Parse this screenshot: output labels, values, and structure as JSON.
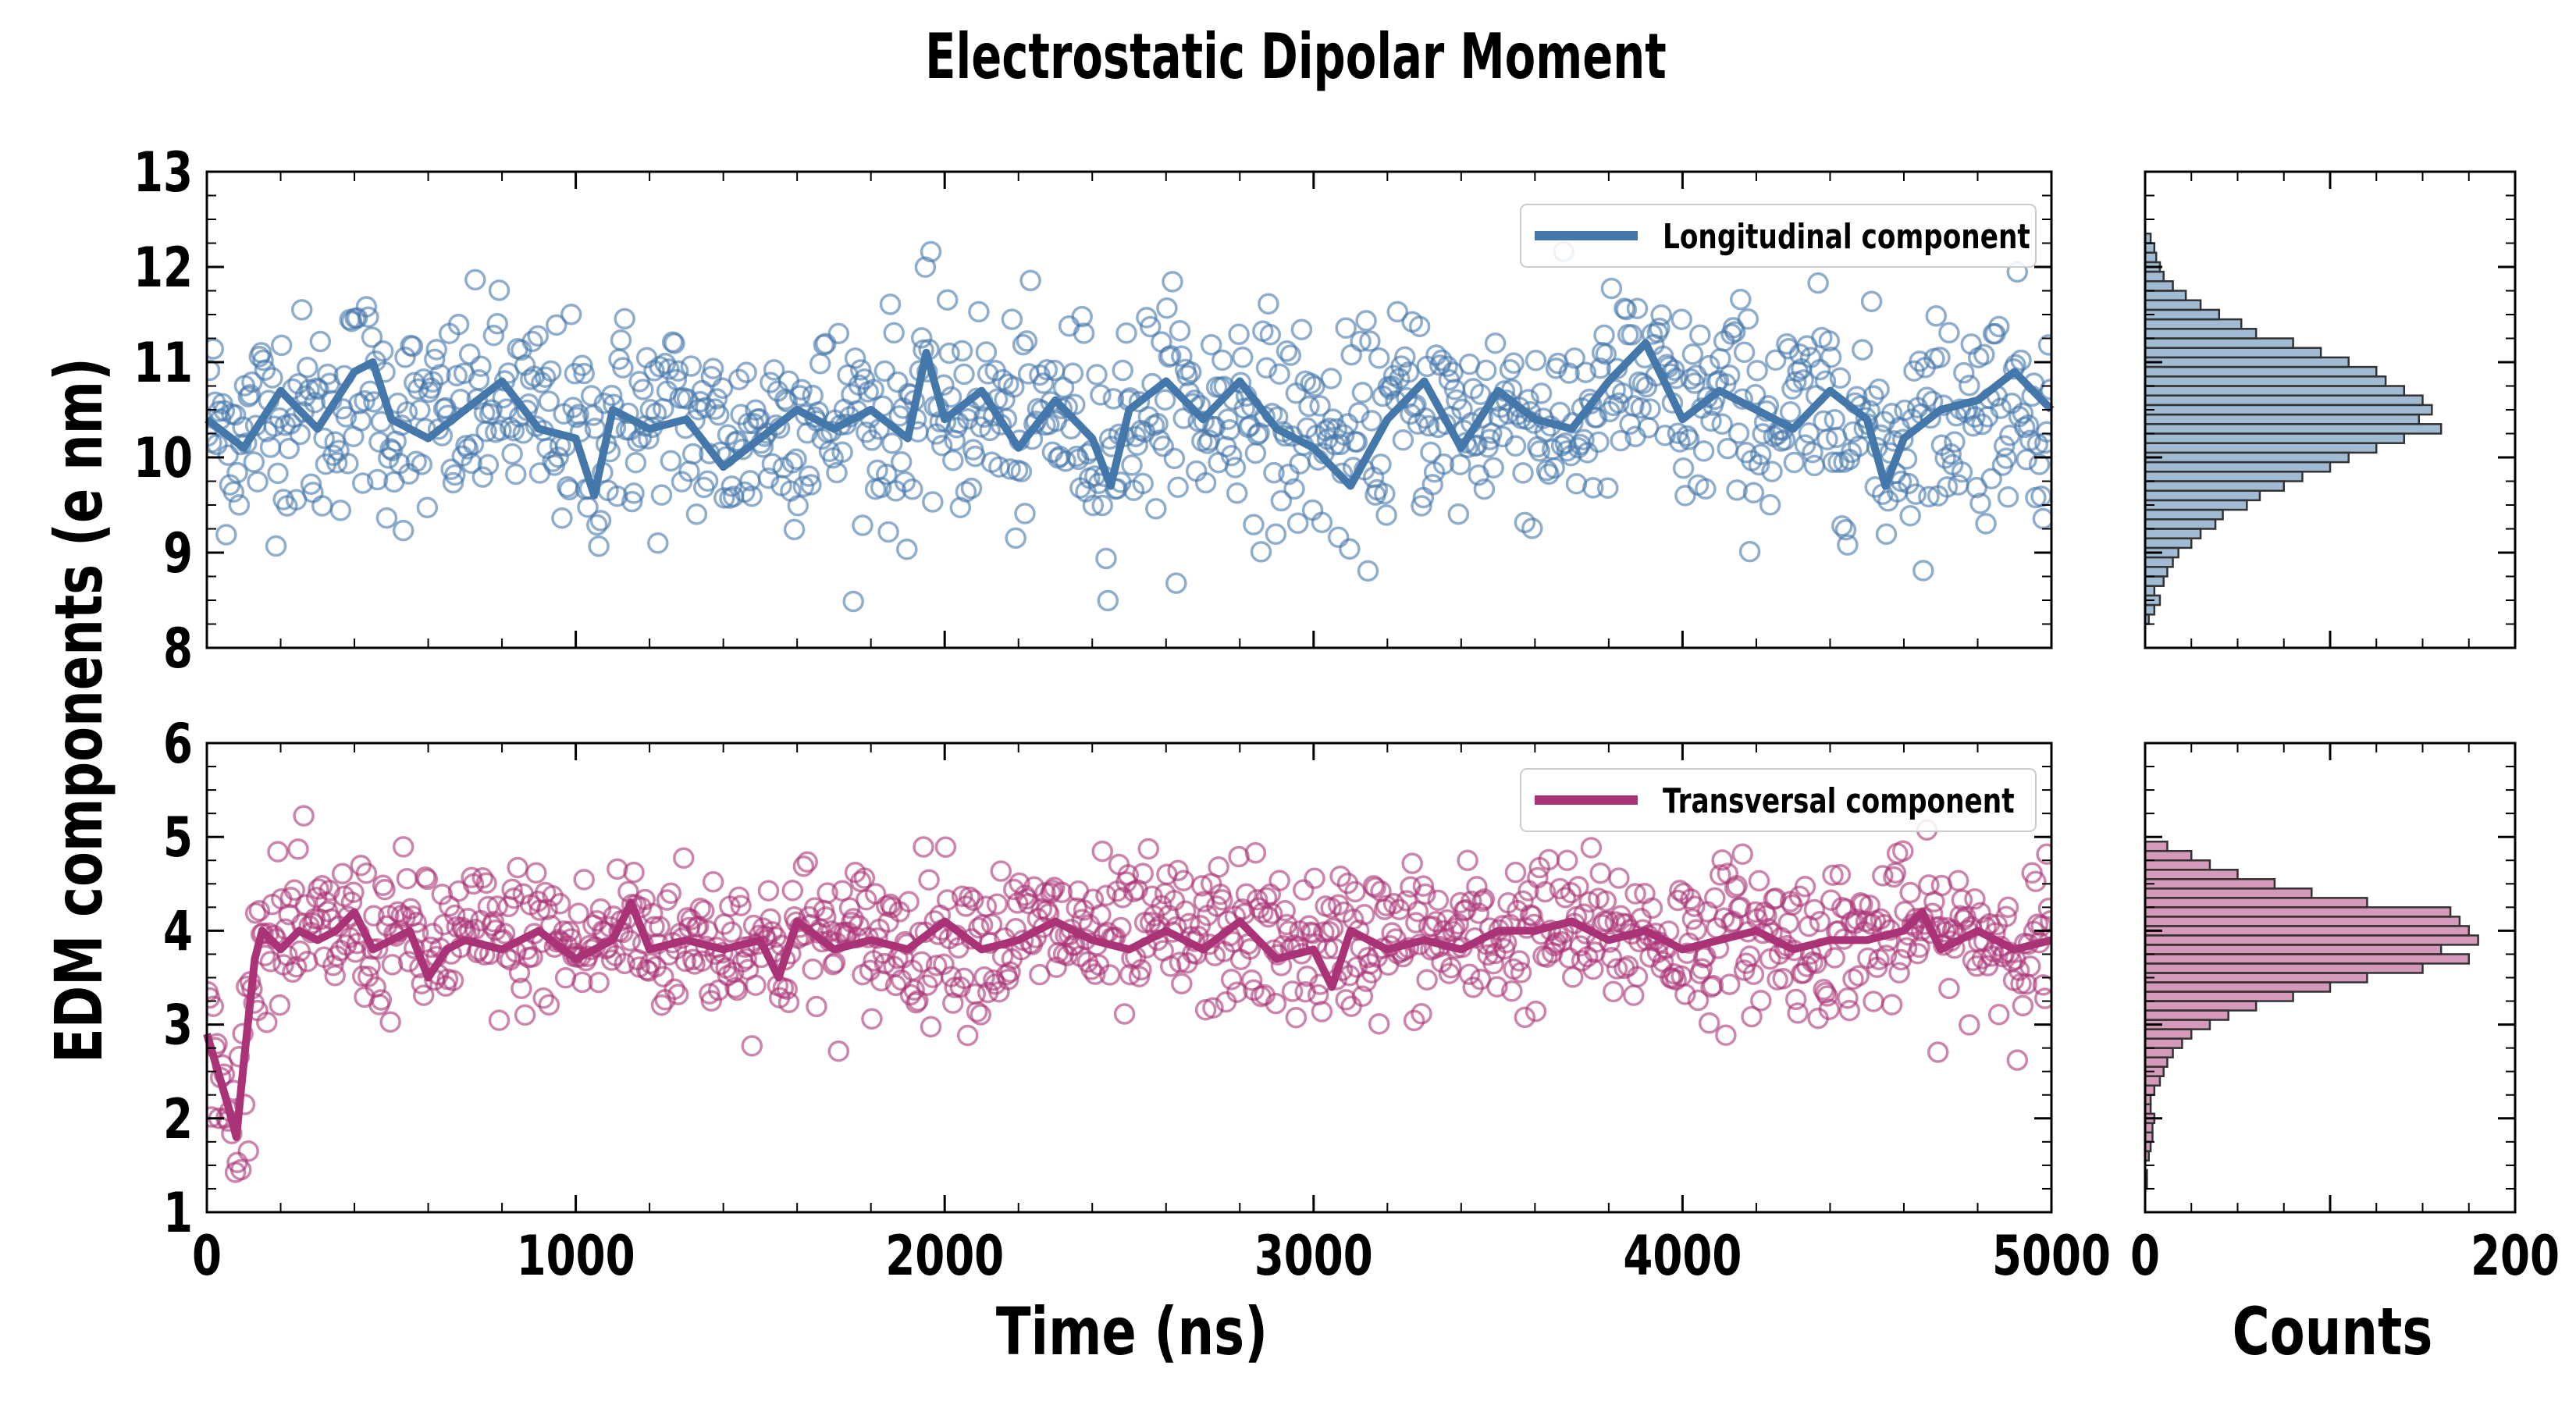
{
  "title": "Electrostatic Dipolar Moment",
  "xlabel": "Time (ns)",
  "ylabel": "EDM components (e nm)",
  "hist_xlabel": "Counts",
  "colors": {
    "longitudinal": "#4477aa",
    "transversal": "#aa3377",
    "frame": "#000000"
  },
  "chart_data": [
    {
      "type": "scatter",
      "panel": "top-main",
      "xlim": [
        0,
        5000
      ],
      "ylim": [
        8,
        13
      ],
      "xticks": [
        "0",
        "1000",
        "2000",
        "3000",
        "4000",
        "5000"
      ],
      "yticks": [
        "8",
        "9",
        "10",
        "11",
        "12",
        "13"
      ],
      "xlabel": "Time (ns)",
      "legend_position": "top-right",
      "series": [
        {
          "name": "Longitudinal component",
          "style": "line",
          "x": [
            0,
            100,
            200,
            300,
            400,
            450,
            500,
            600,
            700,
            800,
            900,
            1000,
            1050,
            1100,
            1200,
            1300,
            1400,
            1500,
            1600,
            1700,
            1800,
            1900,
            1950,
            2000,
            2100,
            2200,
            2300,
            2400,
            2450,
            2500,
            2600,
            2700,
            2800,
            2900,
            3000,
            3050,
            3100,
            3200,
            3300,
            3400,
            3500,
            3600,
            3700,
            3800,
            3900,
            4000,
            4100,
            4200,
            4300,
            4400,
            4500,
            4550,
            4600,
            4700,
            4800,
            4900,
            5000
          ],
          "y": [
            10.4,
            10.1,
            10.7,
            10.3,
            10.9,
            11.0,
            10.4,
            10.2,
            10.5,
            10.8,
            10.3,
            10.2,
            9.6,
            10.5,
            10.3,
            10.4,
            9.9,
            10.2,
            10.5,
            10.3,
            10.5,
            10.2,
            11.1,
            10.4,
            10.7,
            10.1,
            10.6,
            10.2,
            9.7,
            10.5,
            10.8,
            10.4,
            10.8,
            10.3,
            10.1,
            9.9,
            9.7,
            10.4,
            10.8,
            10.1,
            10.7,
            10.4,
            10.3,
            10.8,
            11.2,
            10.4,
            10.7,
            10.5,
            10.3,
            10.7,
            10.4,
            9.7,
            10.2,
            10.5,
            10.6,
            10.9,
            10.5
          ]
        },
        {
          "name": "",
          "style": "open-circles",
          "n_points": 1000,
          "mean": 10.4,
          "sd": 0.55
        }
      ]
    },
    {
      "type": "bar",
      "orientation": "horizontal",
      "panel": "top-histogram",
      "xlim": [
        0,
        200
      ],
      "ylim": [
        8,
        13
      ],
      "bin_centers": [
        8.3,
        8.4,
        8.5,
        8.6,
        8.7,
        8.8,
        8.9,
        9.0,
        9.1,
        9.2,
        9.3,
        9.4,
        9.5,
        9.6,
        9.7,
        9.8,
        9.9,
        10.0,
        10.1,
        10.2,
        10.3,
        10.4,
        10.5,
        10.6,
        10.7,
        10.8,
        10.9,
        11.0,
        11.1,
        11.2,
        11.3,
        11.4,
        11.5,
        11.6,
        11.7,
        11.8,
        11.9,
        12.0,
        12.1,
        12.2,
        12.3
      ],
      "values": [
        2,
        5,
        8,
        5,
        10,
        12,
        15,
        18,
        25,
        30,
        38,
        42,
        55,
        62,
        75,
        85,
        100,
        110,
        125,
        140,
        160,
        148,
        155,
        150,
        140,
        130,
        125,
        110,
        95,
        80,
        60,
        52,
        40,
        30,
        22,
        15,
        10,
        8,
        6,
        5,
        3
      ]
    },
    {
      "type": "scatter",
      "panel": "bottom-main",
      "xlim": [
        0,
        5000
      ],
      "ylim": [
        1,
        6
      ],
      "xticks": [
        "0",
        "1000",
        "2000",
        "3000",
        "4000",
        "5000"
      ],
      "yticks": [
        "1",
        "2",
        "3",
        "4",
        "5",
        "6"
      ],
      "xlabel": "Time (ns)",
      "legend_position": "top-right",
      "series": [
        {
          "name": "Transversal component",
          "style": "line",
          "x": [
            0,
            30,
            60,
            80,
            100,
            130,
            150,
            200,
            250,
            300,
            350,
            400,
            450,
            500,
            550,
            600,
            650,
            700,
            800,
            900,
            1000,
            1100,
            1150,
            1200,
            1300,
            1400,
            1500,
            1550,
            1600,
            1700,
            1800,
            1900,
            2000,
            2100,
            2200,
            2300,
            2400,
            2500,
            2600,
            2700,
            2800,
            2900,
            3000,
            3050,
            3100,
            3200,
            3300,
            3400,
            3500,
            3600,
            3700,
            3800,
            3900,
            4000,
            4100,
            4200,
            4300,
            4400,
            4500,
            4600,
            4650,
            4700,
            4800,
            4900,
            5000
          ],
          "y": [
            2.9,
            2.5,
            2.1,
            1.8,
            2.6,
            3.7,
            4.0,
            3.8,
            4.0,
            3.9,
            4.0,
            4.2,
            3.8,
            3.9,
            4.0,
            3.5,
            3.8,
            3.9,
            3.8,
            4.0,
            3.7,
            3.9,
            4.3,
            3.8,
            3.9,
            3.8,
            3.9,
            3.5,
            4.1,
            3.8,
            3.9,
            3.8,
            4.1,
            3.8,
            3.9,
            4.1,
            3.9,
            3.8,
            4.0,
            3.8,
            4.1,
            3.7,
            3.8,
            3.4,
            4.0,
            3.8,
            3.9,
            3.8,
            4.0,
            4.0,
            4.1,
            3.9,
            4.0,
            3.8,
            3.9,
            4.0,
            3.8,
            3.9,
            3.9,
            4.0,
            4.2,
            3.8,
            4.0,
            3.8,
            3.9
          ]
        },
        {
          "name": "",
          "style": "open-circles",
          "n_points": 1000,
          "mean": 3.95,
          "sd": 0.4
        }
      ]
    },
    {
      "type": "bar",
      "orientation": "horizontal",
      "panel": "bottom-histogram",
      "xlim": [
        0,
        200
      ],
      "ylim": [
        1,
        6
      ],
      "xticks": [
        "0",
        "200"
      ],
      "xlabel": "Counts",
      "bin_centers": [
        1.3,
        1.4,
        1.6,
        1.7,
        1.8,
        1.9,
        2.0,
        2.1,
        2.2,
        2.3,
        2.4,
        2.5,
        2.6,
        2.7,
        2.8,
        2.9,
        3.0,
        3.1,
        3.2,
        3.3,
        3.4,
        3.5,
        3.6,
        3.7,
        3.8,
        3.9,
        4.0,
        4.1,
        4.2,
        4.3,
        4.4,
        4.5,
        4.6,
        4.7,
        4.8,
        4.9
      ],
      "values": [
        1,
        1,
        2,
        3,
        4,
        4,
        5,
        3,
        3,
        5,
        8,
        10,
        12,
        15,
        20,
        25,
        35,
        45,
        60,
        80,
        100,
        120,
        150,
        175,
        160,
        180,
        175,
        170,
        165,
        120,
        90,
        70,
        50,
        35,
        25,
        12
      ]
    }
  ]
}
